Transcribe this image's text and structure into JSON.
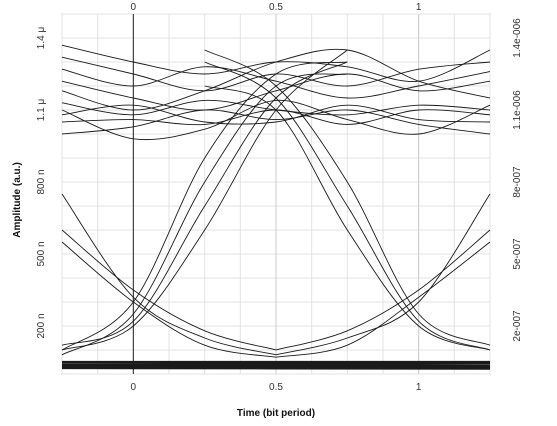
{
  "chart_data": {
    "type": "line",
    "title": "",
    "xlabel": "Time (bit period)",
    "ylabel": "Amplitude (a.u.)",
    "x_ticks": [
      "0",
      "0.5",
      "1"
    ],
    "x_ticks_top": [
      "0",
      "0.5",
      "1"
    ],
    "y_ticks_left": [
      "1.4 μ",
      "1.1 μ",
      "800 n",
      "500 n",
      "200 n"
    ],
    "y_ticks_right": [
      "1.4e-006",
      "1.1e-006",
      "8e-007",
      "5e-007",
      "2e-007"
    ],
    "xlim": [
      -0.25,
      1.25
    ],
    "ylim": [
      0,
      1.5e-06
    ],
    "grid": true,
    "description_of_traces": "Overlaid eye-diagram traces: high-level traces around 1.0–1.4e-6 and low-level traces near 0.02–0.05e-6, with rising/falling transitions crossing near x=0 and x=1 at about 0.3e-6.",
    "high_series": [
      {
        "x": [
          -0.25,
          0,
          0.25,
          0.5,
          0.75,
          1,
          1.25
        ],
        "y": [
          1.37e-06,
          1.3e-06,
          1.25e-06,
          1.3e-06,
          1.28e-06,
          1.22e-06,
          1.35e-06
        ]
      },
      {
        "x": [
          -0.25,
          0,
          0.25,
          0.5,
          0.75,
          1,
          1.25
        ],
        "y": [
          1.32e-06,
          1.25e-06,
          1.18e-06,
          1.25e-06,
          1.2e-06,
          1.27e-06,
          1.3e-06
        ]
      },
      {
        "x": [
          -0.25,
          0,
          0.25,
          0.5,
          0.75,
          1,
          1.25
        ],
        "y": [
          1.27e-06,
          1.2e-06,
          1.28e-06,
          1.22e-06,
          1.15e-06,
          1.2e-06,
          1.26e-06
        ]
      },
      {
        "x": [
          -0.25,
          0,
          0.25,
          0.5,
          0.75,
          1,
          1.25
        ],
        "y": [
          1.22e-06,
          1.15e-06,
          1.1e-06,
          1.18e-06,
          1.25e-06,
          1.18e-06,
          1.22e-06
        ]
      },
      {
        "x": [
          -0.25,
          0,
          0.25,
          0.5,
          0.75,
          1,
          1.25
        ],
        "y": [
          1.18e-06,
          1.1e-06,
          1.18e-06,
          1.3e-06,
          1.35e-06,
          1.22e-06,
          1.15e-06
        ]
      },
      {
        "x": [
          -0.25,
          0,
          0.25,
          0.5,
          0.75,
          1,
          1.25
        ],
        "y": [
          1.13e-06,
          1.08e-06,
          1.14e-06,
          1.1e-06,
          1.08e-06,
          1.12e-06,
          1.1e-06
        ]
      },
      {
        "x": [
          -0.25,
          0,
          0.25,
          0.5,
          0.75,
          1,
          1.25
        ],
        "y": [
          1.08e-06,
          1.12e-06,
          1.05e-06,
          1.05e-06,
          1.12e-06,
          1.06e-06,
          1.05e-06
        ]
      },
      {
        "x": [
          -0.25,
          0,
          0.25,
          0.5,
          0.75,
          1,
          1.25
        ],
        "y": [
          1.05e-06,
          1.06e-06,
          1.04e-06,
          1.1e-06,
          1.04e-06,
          1.1e-06,
          1.08e-06
        ]
      },
      {
        "x": [
          -0.25,
          0,
          0.25,
          0.5,
          0.75,
          1,
          1.25
        ],
        "y": [
          1e-06,
          1.03e-06,
          1.1e-06,
          1.06e-06,
          1.1e-06,
          1.04e-06,
          1e-06
        ]
      },
      {
        "x": [
          -0.25,
          0,
          0.25,
          0.5,
          0.75,
          1,
          1.25
        ],
        "y": [
          1.1e-06,
          9.8e-07,
          1.02e-06,
          1.14e-06,
          1.06e-06,
          1e-06,
          1.12e-06
        ]
      }
    ],
    "low_series": [
      {
        "x": [
          -0.25,
          1.25
        ],
        "y": [
          5e-08,
          5e-08
        ]
      },
      {
        "x": [
          -0.25,
          1.25
        ],
        "y": [
          4e-08,
          4.5e-08
        ]
      },
      {
        "x": [
          -0.25,
          1.25
        ],
        "y": [
          3.5e-08,
          3.5e-08
        ]
      },
      {
        "x": [
          -0.25,
          1.25
        ],
        "y": [
          3e-08,
          2.8e-08
        ]
      },
      {
        "x": [
          -0.25,
          1.25
        ],
        "y": [
          2.5e-08,
          2.2e-08
        ]
      }
    ],
    "rising_series": [
      {
        "x": [
          -0.25,
          0,
          0.25,
          0.5,
          0.75
        ],
        "y": [
          1e-07,
          2e-07,
          6e-07,
          1.1e-06,
          1.35e-06
        ]
      },
      {
        "x": [
          -0.25,
          0,
          0.25,
          0.5,
          0.75
        ],
        "y": [
          1.2e-07,
          2.2e-07,
          7e-07,
          1.15e-06,
          1.3e-06
        ]
      },
      {
        "x": [
          -0.25,
          0,
          0.25,
          0.5,
          0.75
        ],
        "y": [
          8e-08,
          2.5e-07,
          8e-07,
          1.2e-06,
          1.25e-06
        ]
      },
      {
        "x": [
          -0.25,
          0,
          0.25,
          0.5,
          0.75
        ],
        "y": [
          1e-07,
          3e-07,
          9e-07,
          1.25e-06,
          1.3e-06
        ]
      }
    ],
    "falling_series": [
      {
        "x": [
          -0.25,
          0,
          0.25,
          0.5
        ],
        "y": [
          7.5e-07,
          3.2e-07,
          1.5e-07,
          8e-08
        ]
      },
      {
        "x": [
          -0.25,
          0,
          0.25,
          0.5
        ],
        "y": [
          6e-07,
          3.5e-07,
          1.8e-07,
          1e-07
        ]
      },
      {
        "x": [
          -0.25,
          0,
          0.25,
          0.5
        ],
        "y": [
          5.5e-07,
          3e-07,
          1.2e-07,
          7e-08
        ]
      },
      {
        "x": [
          0.25,
          0.5,
          0.75,
          1,
          1.25
        ],
        "y": [
          1.2e-06,
          1.1e-06,
          6e-07,
          2e-07,
          1e-07
        ]
      },
      {
        "x": [
          0.25,
          0.5,
          0.75,
          1,
          1.25
        ],
        "y": [
          1.3e-06,
          1.15e-06,
          7e-07,
          2.2e-07,
          1e-07
        ]
      },
      {
        "x": [
          0.25,
          0.5,
          0.75,
          1,
          1.25
        ],
        "y": [
          1.35e-06,
          1.2e-06,
          8e-07,
          2.5e-07,
          1.2e-07
        ]
      },
      {
        "x": [
          0.5,
          0.75,
          1,
          1.25
        ],
        "y": [
          8e-08,
          1.5e-07,
          3e-07,
          7.5e-07
        ]
      },
      {
        "x": [
          0.5,
          0.75,
          1,
          1.25
        ],
        "y": [
          1e-07,
          1.8e-07,
          3.5e-07,
          6e-07
        ]
      },
      {
        "x": [
          0.5,
          0.75,
          1,
          1.25
        ],
        "y": [
          7e-08,
          1.2e-07,
          3.2e-07,
          5.5e-07
        ]
      }
    ]
  }
}
